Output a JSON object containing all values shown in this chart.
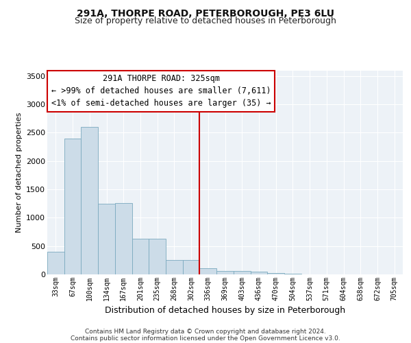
{
  "title": "291A, THORPE ROAD, PETERBOROUGH, PE3 6LU",
  "subtitle": "Size of property relative to detached houses in Peterborough",
  "xlabel": "Distribution of detached houses by size in Peterborough",
  "ylabel": "Number of detached properties",
  "footer_line1": "Contains HM Land Registry data © Crown copyright and database right 2024.",
  "footer_line2": "Contains public sector information licensed under the Open Government Licence v3.0.",
  "annotation_line1": "291A THORPE ROAD: 325sqm",
  "annotation_line2": "← >99% of detached houses are smaller (7,611)",
  "annotation_line3": "<1% of semi-detached houses are larger (35) →",
  "bar_labels": [
    "33sqm",
    "67sqm",
    "100sqm",
    "134sqm",
    "167sqm",
    "201sqm",
    "235sqm",
    "268sqm",
    "302sqm",
    "336sqm",
    "369sqm",
    "403sqm",
    "436sqm",
    "470sqm",
    "504sqm",
    "537sqm",
    "571sqm",
    "604sqm",
    "638sqm",
    "672sqm",
    "705sqm"
  ],
  "bar_values": [
    400,
    2400,
    2600,
    1250,
    1260,
    630,
    630,
    260,
    260,
    110,
    55,
    55,
    50,
    30,
    10,
    5,
    5,
    2,
    2,
    1,
    1
  ],
  "bar_color": "#ccdce8",
  "bar_edge_color": "#7aaabf",
  "vline_index": 9,
  "vline_color": "#cc0000",
  "ylim": [
    0,
    3600
  ],
  "yticks": [
    0,
    500,
    1000,
    1500,
    2000,
    2500,
    3000,
    3500
  ],
  "background_color": "#edf2f7",
  "title_fontsize": 10,
  "subtitle_fontsize": 9,
  "annotation_fontsize": 8.5,
  "ylabel_fontsize": 8,
  "xlabel_fontsize": 9
}
